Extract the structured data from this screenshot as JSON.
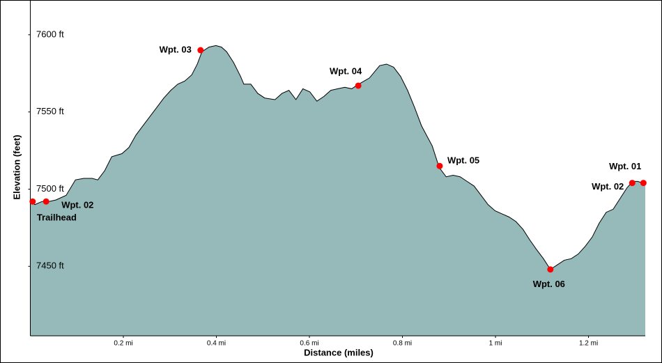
{
  "chart_data": {
    "type": "area",
    "x_label": "Distance (miles)",
    "y_label": "Elevation (feet)",
    "color": "#96b9ba",
    "line_color": "#000000",
    "xlim": [
      0,
      1.322
    ],
    "ylim": [
      7405,
      7622.5
    ],
    "xticks": [
      {
        "value": 0.2,
        "label": "0.2 mi"
      },
      {
        "value": 0.4,
        "label": "0.4 mi"
      },
      {
        "value": 0.6,
        "label": "0.6 mi"
      },
      {
        "value": 0.8,
        "label": "0.8 mi"
      },
      {
        "value": 1,
        "label": "1 mi"
      },
      {
        "value": 1.2,
        "label": "1.2 mi"
      }
    ],
    "yticks": [
      {
        "value": 7450,
        "label": "7450 ft"
      },
      {
        "value": 7500,
        "label": "7500 ft"
      },
      {
        "value": 7550,
        "label": "7550 ft"
      },
      {
        "value": 7600,
        "label": "7600 ft"
      }
    ],
    "x": [
      0,
      0.01,
      0.025,
      0.04,
      0.055,
      0.077,
      0.097,
      0.115,
      0.133,
      0.145,
      0.16,
      0.175,
      0.197,
      0.212,
      0.227,
      0.242,
      0.257,
      0.272,
      0.287,
      0.302,
      0.317,
      0.332,
      0.347,
      0.359,
      0.369,
      0.384,
      0.399,
      0.411,
      0.422,
      0.437,
      0.452,
      0.459,
      0.474,
      0.489,
      0.504,
      0.526,
      0.541,
      0.556,
      0.571,
      0.586,
      0.601,
      0.616,
      0.631,
      0.646,
      0.661,
      0.676,
      0.691,
      0.706,
      0.729,
      0.751,
      0.766,
      0.781,
      0.796,
      0.811,
      0.826,
      0.841,
      0.864,
      0.879,
      0.894,
      0.909,
      0.924,
      0.939,
      0.954,
      0.969,
      0.984,
      0.999,
      1.014,
      1.029,
      1.044,
      1.059,
      1.074,
      1.088,
      1.103,
      1.118,
      1.133,
      1.148,
      1.163,
      1.178,
      1.193,
      1.208,
      1.223,
      1.238,
      1.253,
      1.268,
      1.283,
      1.295,
      1.306,
      1.316,
      1.322
    ],
    "values": [
      7492,
      7490,
      7492,
      7492,
      7493,
      7496,
      7506,
      7507,
      7507,
      7506,
      7512,
      7521,
      7523,
      7527,
      7535,
      7541,
      7547,
      7553,
      7559,
      7564,
      7568,
      7570,
      7574,
      7581,
      7589,
      7592,
      7593,
      7592,
      7589,
      7582,
      7573,
      7568,
      7568,
      7562,
      7559,
      7558,
      7562,
      7564,
      7558,
      7565,
      7563,
      7557,
      7560,
      7564,
      7565,
      7566,
      7565,
      7568,
      7572,
      7580,
      7581,
      7579,
      7573,
      7564,
      7553,
      7541,
      7528,
      7514,
      7508,
      7509,
      7508,
      7505,
      7502,
      7496,
      7490,
      7486,
      7484,
      7482,
      7479,
      7474,
      7467,
      7461,
      7455,
      7448,
      7451,
      7454,
      7455,
      7458,
      7463,
      7469,
      7478,
      7485,
      7487,
      7494,
      7501,
      7505,
      7505,
      7504,
      7504
    ],
    "waypoints": [
      {
        "name": "Trailhead",
        "x": 0.005,
        "value": 7492
      },
      {
        "name": "Wpt. 02",
        "x": 0.034,
        "value": 7492
      },
      {
        "name": "Wpt. 03",
        "x": 0.366,
        "value": 7590
      },
      {
        "name": "Wpt. 04",
        "x": 0.705,
        "value": 7567
      },
      {
        "name": "Wpt. 05",
        "x": 0.88,
        "value": 7515
      },
      {
        "name": "Wpt. 06",
        "x": 1.118,
        "value": 7448
      },
      {
        "name": "Wpt. 02",
        "x": 1.294,
        "value": 7504
      },
      {
        "name": "Wpt. 01",
        "x": 1.318,
        "value": 7504
      }
    ],
    "waypoint_color": "#ff0000"
  }
}
